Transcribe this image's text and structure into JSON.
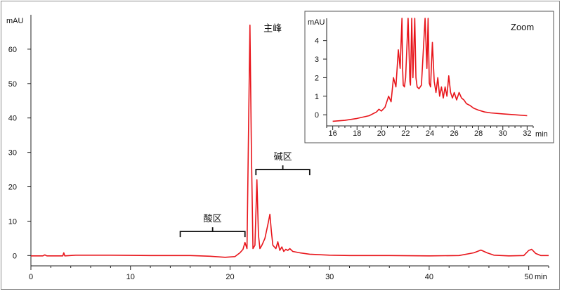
{
  "chart_data": [
    {
      "type": "line",
      "title": "",
      "xlabel": "min",
      "ylabel": "mAU",
      "xlim": [
        0,
        52
      ],
      "ylim": [
        -3,
        70
      ],
      "x_ticks": [
        0,
        10,
        20,
        30,
        40,
        50
      ],
      "y_ticks": [
        0,
        10,
        20,
        30,
        40,
        50,
        60
      ],
      "grid": false,
      "series": [
        {
          "color": "#e8151b",
          "x": [
            0,
            1.2,
            1.4,
            1.6,
            3.2,
            3.3,
            3.4,
            4.5,
            8,
            12,
            16,
            18,
            19.5,
            20.5,
            21,
            21.3,
            21.5,
            21.7,
            21.85,
            22.0,
            22.15,
            22.3,
            22.5,
            22.7,
            22.85,
            23.0,
            23.2,
            23.5,
            23.8,
            24.0,
            24.15,
            24.3,
            24.6,
            24.8,
            25.0,
            25.2,
            25.4,
            25.6,
            25.8,
            26.0,
            26.3,
            27,
            28,
            30,
            32,
            36,
            40,
            43,
            44.5,
            45.2,
            45.8,
            46.5,
            48,
            49.5,
            50.0,
            50.3,
            50.7,
            51.2,
            52
          ],
          "y": [
            -0.1,
            -0.1,
            0.2,
            -0.1,
            -0.1,
            0.8,
            -0.1,
            0.1,
            0.1,
            0,
            0,
            -0.2,
            -0.5,
            -0.3,
            0.8,
            1.8,
            3.8,
            2,
            35,
            67,
            30,
            2,
            3,
            22,
            6,
            2,
            3,
            5,
            9,
            12,
            7,
            3,
            2,
            4,
            1.5,
            2.5,
            1.2,
            1.8,
            1.5,
            2,
            1.2,
            0.8,
            0.4,
            0.1,
            0,
            0,
            -0.1,
            0,
            0.8,
            1.6,
            0.8,
            0.1,
            -0.1,
            0,
            1.5,
            1.8,
            0.6,
            0,
            0
          ]
        }
      ],
      "annotations": [
        {
          "text": "主峰",
          "x": 23.5,
          "y": 66
        },
        {
          "text": "酸区",
          "x_range": [
            15,
            21.5
          ],
          "y": 7
        },
        {
          "text": "碱区",
          "x_range": [
            22.6,
            28
          ],
          "y": 25
        }
      ]
    },
    {
      "type": "line",
      "title": "Zoom",
      "xlabel": "min",
      "ylabel": "mAU",
      "xlim": [
        15.5,
        32.5
      ],
      "ylim": [
        -0.6,
        5.2
      ],
      "x_ticks": [
        16,
        18,
        20,
        22,
        24,
        26,
        28,
        30,
        32
      ],
      "y_ticks": [
        0,
        1,
        2,
        3,
        4
      ],
      "grid": false,
      "series": [
        {
          "color": "#e8151b",
          "x": [
            16.0,
            17,
            18,
            19,
            19.6,
            19.8,
            20.0,
            20.3,
            20.6,
            20.8,
            21.0,
            21.2,
            21.4,
            21.55,
            21.7,
            21.75,
            21.8,
            21.9,
            22.0,
            22.2,
            22.35,
            22.4,
            22.5,
            22.6,
            22.75,
            22.85,
            22.95,
            23.1,
            23.3,
            23.6,
            23.75,
            23.85,
            23.95,
            24.05,
            24.2,
            24.35,
            24.5,
            24.65,
            24.8,
            24.95,
            25.1,
            25.25,
            25.4,
            25.55,
            25.7,
            25.85,
            26.0,
            26.2,
            26.4,
            26.6,
            26.8,
            27.0,
            27.3,
            27.6,
            28.0,
            28.5,
            29,
            30,
            31,
            32.0
          ],
          "y": [
            -0.35,
            -0.3,
            -0.2,
            -0.05,
            0.15,
            0.3,
            0.2,
            0.4,
            1.0,
            0.7,
            2.0,
            1.5,
            3.5,
            2.5,
            5.2,
            2.5,
            1.6,
            1.5,
            2.0,
            5.2,
            1.8,
            1.6,
            5.2,
            2.0,
            5.2,
            2.0,
            1.5,
            1.4,
            1.6,
            5.2,
            2.5,
            5.2,
            1.7,
            1.5,
            3.9,
            1.8,
            1.2,
            2.0,
            1.0,
            1.5,
            0.9,
            1.5,
            1.0,
            2.1,
            1.2,
            0.9,
            1.2,
            0.8,
            1.2,
            0.9,
            0.8,
            0.6,
            0.5,
            0.35,
            0.25,
            0.15,
            0.1,
            0.05,
            0.0,
            -0.05
          ]
        }
      ]
    }
  ]
}
